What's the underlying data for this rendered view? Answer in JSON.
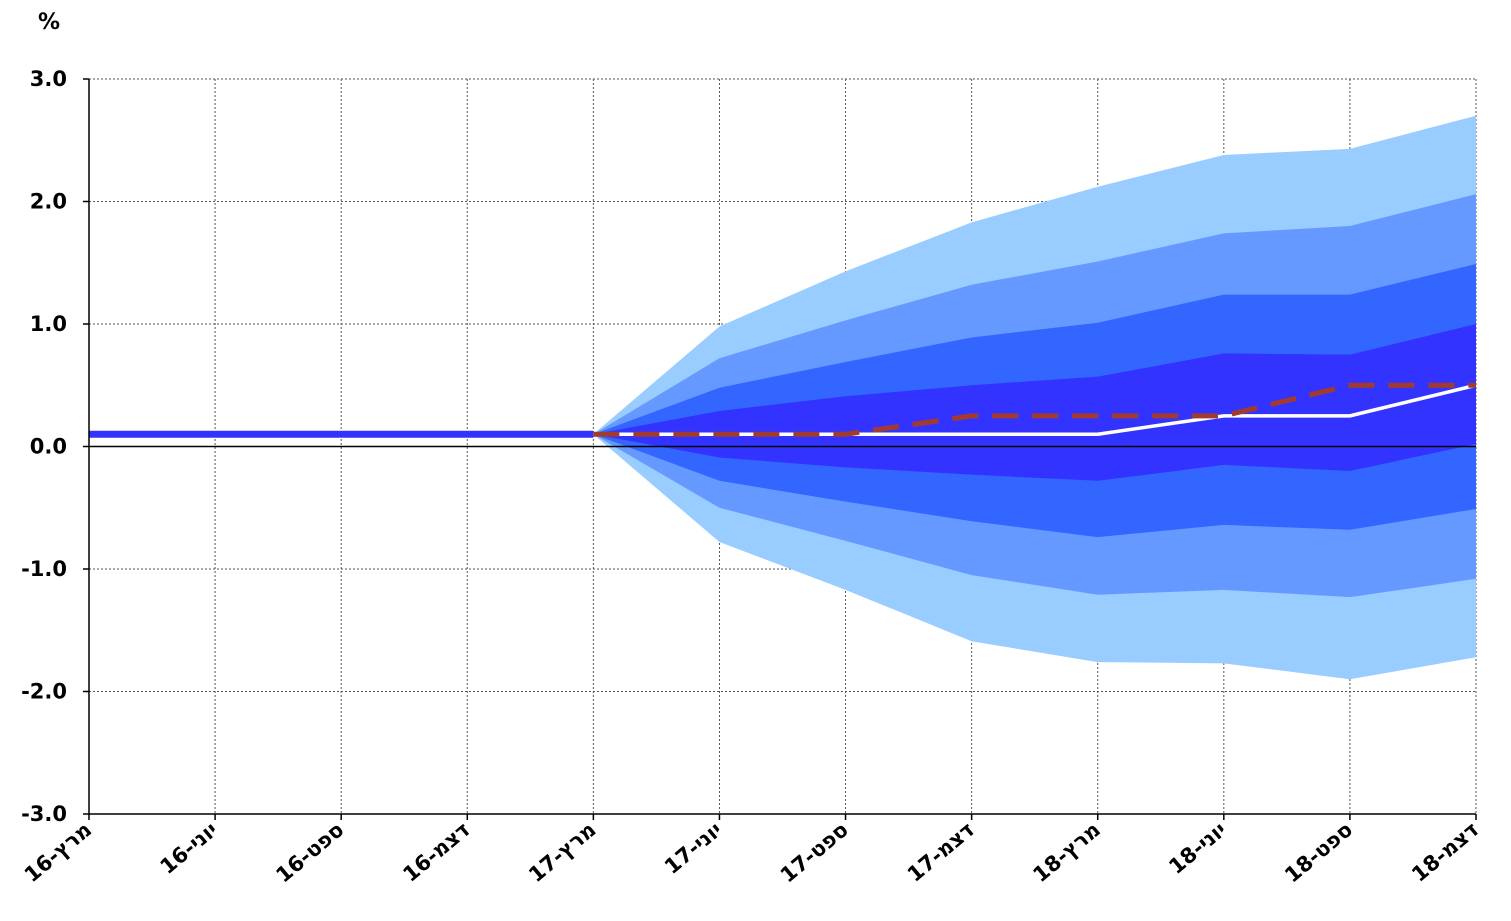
{
  "chart_data": {
    "type": "area",
    "y_unit_label": "%",
    "categories": [
      "מרץ-16",
      "יוני-16",
      "ספט-16",
      "דצמ-16",
      "מרץ-17",
      "יוני-17",
      "ספט-17",
      "דצמ-17",
      "מרץ-18",
      "יוני-18",
      "ספט-18",
      "דצמ-18"
    ],
    "ylim": [
      -3.0,
      3.0
    ],
    "yticks": [
      "3.0",
      "2.0",
      "1.0",
      "0.0",
      "-1.0",
      "-2.0",
      "-3.0"
    ],
    "ytick_values": [
      3,
      2,
      1,
      0,
      -1,
      -2,
      -3
    ],
    "grid": true,
    "fan_bands": [
      {
        "color": "#99ccff",
        "upper": [
          0.1,
          0.1,
          0.1,
          0.1,
          0.1,
          0.98,
          1.43,
          1.83,
          2.12,
          2.38,
          2.43,
          2.7
        ],
        "lower": [
          0.1,
          0.1,
          0.1,
          0.1,
          0.1,
          -0.78,
          -1.17,
          -1.59,
          -1.76,
          -1.77,
          -1.9,
          -1.72
        ]
      },
      {
        "color": "#6699ff",
        "upper": [
          0.1,
          0.1,
          0.1,
          0.1,
          0.1,
          0.72,
          1.03,
          1.32,
          1.51,
          1.74,
          1.8,
          2.06
        ],
        "lower": [
          0.1,
          0.1,
          0.1,
          0.1,
          0.1,
          -0.5,
          -0.77,
          -1.05,
          -1.21,
          -1.17,
          -1.23,
          -1.08
        ]
      },
      {
        "color": "#3366ff",
        "upper": [
          0.1,
          0.1,
          0.1,
          0.1,
          0.1,
          0.48,
          0.69,
          0.89,
          1.01,
          1.24,
          1.24,
          1.49
        ],
        "lower": [
          0.1,
          0.1,
          0.1,
          0.1,
          0.1,
          -0.28,
          -0.45,
          -0.61,
          -0.74,
          -0.64,
          -0.68,
          -0.51
        ]
      },
      {
        "color": "#3333ff",
        "upper": [
          0.1,
          0.1,
          0.1,
          0.1,
          0.1,
          0.29,
          0.41,
          0.5,
          0.57,
          0.76,
          0.75,
          1.0
        ],
        "lower": [
          0.1,
          0.1,
          0.1,
          0.1,
          0.1,
          -0.09,
          -0.17,
          -0.23,
          -0.28,
          -0.15,
          -0.2,
          0.02
        ]
      }
    ],
    "series": [
      {
        "style": "solid",
        "color": "#3333ff",
        "values": [
          0.1,
          0.1,
          0.1,
          0.1,
          0.1,
          null,
          null,
          null,
          null,
          null,
          null,
          null
        ]
      },
      {
        "style": "solid",
        "color": "#ffffff",
        "values": [
          null,
          null,
          null,
          null,
          0.1,
          0.1,
          0.1,
          0.1,
          0.1,
          0.25,
          0.25,
          0.5
        ]
      },
      {
        "style": "dashed",
        "color": "#a33a2e",
        "values": [
          null,
          null,
          null,
          null,
          0.1,
          0.1,
          0.1,
          0.25,
          0.25,
          0.25,
          0.5,
          0.5
        ]
      }
    ]
  }
}
